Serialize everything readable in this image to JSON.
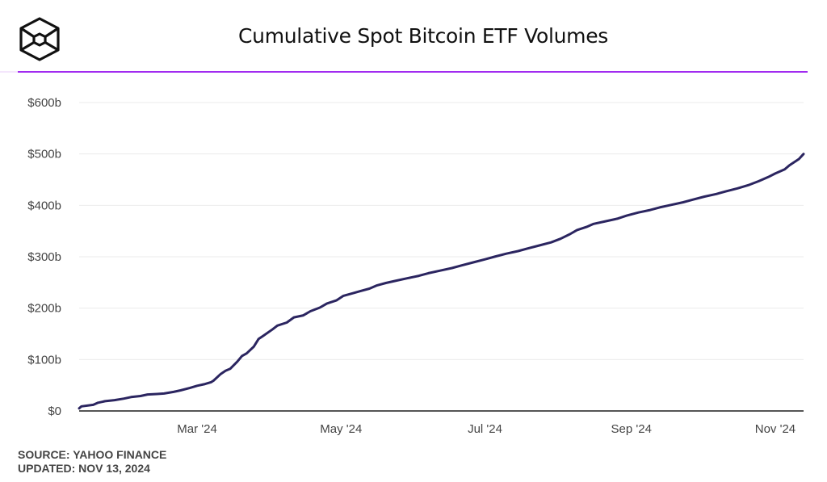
{
  "header": {
    "logo_icon": "hexagon-cube-icon",
    "title": "Cumulative Spot Bitcoin ETF Volumes",
    "accent_color": "#a12bf0"
  },
  "footer": {
    "source": "SOURCE: YAHOO FINANCE",
    "updated": "UPDATED: NOV 13, 2024"
  },
  "chart_data": {
    "type": "line",
    "title": "Cumulative Spot Bitcoin ETF Volumes",
    "xlabel": "",
    "ylabel": "",
    "units": "USD billions",
    "ylim": [
      0,
      600
    ],
    "xlim": [
      "2024-01-11",
      "2024-11-13"
    ],
    "grid": true,
    "legend": "none",
    "line_color": "#2b2560",
    "y_ticks": [
      {
        "value": 0,
        "label": "$0"
      },
      {
        "value": 100,
        "label": "$100b"
      },
      {
        "value": 200,
        "label": "$200b"
      },
      {
        "value": 300,
        "label": "$300b"
      },
      {
        "value": 400,
        "label": "$400b"
      },
      {
        "value": 500,
        "label": "$500b"
      },
      {
        "value": 600,
        "label": "$600b"
      }
    ],
    "x_ticks": [
      {
        "date": "2024-03-01",
        "label": "Mar '24"
      },
      {
        "date": "2024-05-01",
        "label": "May '24"
      },
      {
        "date": "2024-07-01",
        "label": "Jul '24"
      },
      {
        "date": "2024-09-01",
        "label": "Sep '24"
      },
      {
        "date": "2024-11-01",
        "label": "Nov '24"
      }
    ],
    "series": [
      {
        "name": "Cumulative volume",
        "points": [
          {
            "date": "2024-01-11",
            "value": 5
          },
          {
            "date": "2024-01-12",
            "value": 9
          },
          {
            "date": "2024-01-17",
            "value": 12
          },
          {
            "date": "2024-01-19",
            "value": 16
          },
          {
            "date": "2024-01-22",
            "value": 19
          },
          {
            "date": "2024-01-26",
            "value": 21
          },
          {
            "date": "2024-01-30",
            "value": 24
          },
          {
            "date": "2024-02-02",
            "value": 27
          },
          {
            "date": "2024-02-06",
            "value": 29
          },
          {
            "date": "2024-02-09",
            "value": 32
          },
          {
            "date": "2024-02-13",
            "value": 33
          },
          {
            "date": "2024-02-16",
            "value": 34
          },
          {
            "date": "2024-02-20",
            "value": 37
          },
          {
            "date": "2024-02-23",
            "value": 40
          },
          {
            "date": "2024-02-27",
            "value": 45
          },
          {
            "date": "2024-03-01",
            "value": 49
          },
          {
            "date": "2024-03-04",
            "value": 52
          },
          {
            "date": "2024-03-07",
            "value": 56
          },
          {
            "date": "2024-03-08",
            "value": 59
          },
          {
            "date": "2024-03-11",
            "value": 72
          },
          {
            "date": "2024-03-13",
            "value": 78
          },
          {
            "date": "2024-03-15",
            "value": 82
          },
          {
            "date": "2024-03-18",
            "value": 96
          },
          {
            "date": "2024-03-20",
            "value": 107
          },
          {
            "date": "2024-03-22",
            "value": 112
          },
          {
            "date": "2024-03-25",
            "value": 125
          },
          {
            "date": "2024-03-27",
            "value": 140
          },
          {
            "date": "2024-03-29",
            "value": 146
          },
          {
            "date": "2024-04-02",
            "value": 159
          },
          {
            "date": "2024-04-04",
            "value": 166
          },
          {
            "date": "2024-04-08",
            "value": 172
          },
          {
            "date": "2024-04-11",
            "value": 182
          },
          {
            "date": "2024-04-15",
            "value": 186
          },
          {
            "date": "2024-04-18",
            "value": 194
          },
          {
            "date": "2024-04-22",
            "value": 201
          },
          {
            "date": "2024-04-25",
            "value": 209
          },
          {
            "date": "2024-04-29",
            "value": 215
          },
          {
            "date": "2024-05-02",
            "value": 224
          },
          {
            "date": "2024-05-06",
            "value": 229
          },
          {
            "date": "2024-05-09",
            "value": 233
          },
          {
            "date": "2024-05-13",
            "value": 238
          },
          {
            "date": "2024-05-16",
            "value": 244
          },
          {
            "date": "2024-05-20",
            "value": 249
          },
          {
            "date": "2024-05-24",
            "value": 253
          },
          {
            "date": "2024-05-29",
            "value": 258
          },
          {
            "date": "2024-06-03",
            "value": 263
          },
          {
            "date": "2024-06-07",
            "value": 268
          },
          {
            "date": "2024-06-12",
            "value": 273
          },
          {
            "date": "2024-06-17",
            "value": 278
          },
          {
            "date": "2024-06-21",
            "value": 283
          },
          {
            "date": "2024-06-26",
            "value": 289
          },
          {
            "date": "2024-07-01",
            "value": 295
          },
          {
            "date": "2024-07-05",
            "value": 300
          },
          {
            "date": "2024-07-10",
            "value": 306
          },
          {
            "date": "2024-07-15",
            "value": 311
          },
          {
            "date": "2024-07-19",
            "value": 316
          },
          {
            "date": "2024-07-24",
            "value": 322
          },
          {
            "date": "2024-07-29",
            "value": 328
          },
          {
            "date": "2024-08-02",
            "value": 335
          },
          {
            "date": "2024-08-06",
            "value": 344
          },
          {
            "date": "2024-08-09",
            "value": 352
          },
          {
            "date": "2024-08-13",
            "value": 358
          },
          {
            "date": "2024-08-16",
            "value": 364
          },
          {
            "date": "2024-08-21",
            "value": 369
          },
          {
            "date": "2024-08-26",
            "value": 374
          },
          {
            "date": "2024-08-30",
            "value": 380
          },
          {
            "date": "2024-09-04",
            "value": 386
          },
          {
            "date": "2024-09-09",
            "value": 391
          },
          {
            "date": "2024-09-13",
            "value": 396
          },
          {
            "date": "2024-09-18",
            "value": 401
          },
          {
            "date": "2024-09-23",
            "value": 406
          },
          {
            "date": "2024-09-27",
            "value": 411
          },
          {
            "date": "2024-10-02",
            "value": 417
          },
          {
            "date": "2024-10-07",
            "value": 422
          },
          {
            "date": "2024-10-11",
            "value": 427
          },
          {
            "date": "2024-10-16",
            "value": 433
          },
          {
            "date": "2024-10-21",
            "value": 440
          },
          {
            "date": "2024-10-25",
            "value": 447
          },
          {
            "date": "2024-10-29",
            "value": 455
          },
          {
            "date": "2024-11-01",
            "value": 462
          },
          {
            "date": "2024-11-05",
            "value": 470
          },
          {
            "date": "2024-11-07",
            "value": 478
          },
          {
            "date": "2024-11-11",
            "value": 490
          },
          {
            "date": "2024-11-13",
            "value": 500
          }
        ]
      }
    ]
  }
}
